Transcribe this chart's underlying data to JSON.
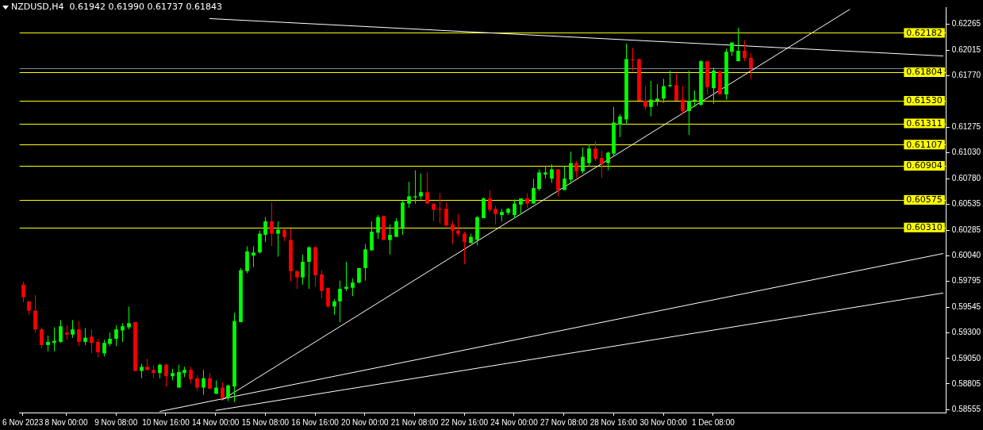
{
  "chart_data": {
    "type": "candlestick",
    "title": "NZDUSD,H4  0.61942 0.61990 0.61737 0.61843",
    "categories": [
      "6 Nov 2023",
      null,
      null,
      null,
      null,
      null,
      null,
      "8 Nov 00:00",
      null,
      null,
      null,
      null,
      null,
      null,
      null,
      "9 Nov 08:00",
      null,
      null,
      null,
      null,
      null,
      null,
      null,
      "10 Nov 16:00",
      null,
      null,
      null,
      null,
      null,
      null,
      null,
      "14 Nov 00:00",
      null,
      null,
      null,
      null,
      null,
      null,
      null,
      "15 Nov 08:00",
      null,
      null,
      null,
      null,
      null,
      null,
      null,
      "16 Nov 16:00",
      null,
      null,
      null,
      null,
      null,
      null,
      null,
      "20 Nov 00:00",
      null,
      null,
      null,
      null,
      null,
      null,
      null,
      "21 Nov 08:00",
      null,
      null,
      null,
      null,
      null,
      null,
      null,
      "22 Nov 16:00",
      null,
      null,
      null,
      null,
      null,
      null,
      null,
      "24 Nov 00:00",
      null,
      null,
      null,
      null,
      null,
      null,
      null,
      "27 Nov 08:00",
      null,
      null,
      null,
      null,
      null,
      null,
      null,
      "28 Nov 16:00",
      null,
      null,
      null,
      null,
      null,
      null,
      null,
      "30 Nov 00:00",
      null,
      null,
      null,
      null,
      null,
      null,
      null,
      "1 Dec 08:00",
      null,
      null,
      null,
      null,
      null,
      null,
      null,
      null,
      null,
      null,
      null,
      null,
      null,
      null,
      null,
      null,
      null,
      null,
      null,
      null,
      null,
      null,
      null,
      null,
      null,
      null,
      null,
      null,
      null,
      null,
      null,
      null,
      null,
      null,
      null,
      null,
      null
    ],
    "ohlc": [
      [
        0.5976,
        0.5979,
        0.5959,
        0.5964
      ],
      [
        0.596,
        0.596,
        0.5947,
        0.5951
      ],
      [
        0.5951,
        0.5966,
        0.593,
        0.5933
      ],
      [
        0.5933,
        0.5935,
        0.5915,
        0.5918
      ],
      [
        0.5918,
        0.5927,
        0.5912,
        0.5921
      ],
      [
        0.592,
        0.5935,
        0.5912,
        0.5922
      ],
      [
        0.5921,
        0.5942,
        0.592,
        0.5936
      ],
      [
        0.593,
        0.5937,
        0.5923,
        0.5928
      ],
      [
        0.5928,
        0.5942,
        0.5925,
        0.5933
      ],
      [
        0.5933,
        0.5941,
        0.5917,
        0.5921
      ],
      [
        0.5921,
        0.5934,
        0.5918,
        0.5925
      ],
      [
        0.5926,
        0.5933,
        0.591,
        0.592
      ],
      [
        0.5921,
        0.5924,
        0.5906,
        0.5911
      ],
      [
        0.591,
        0.5923,
        0.5907,
        0.592
      ],
      [
        0.5919,
        0.593,
        0.5917,
        0.5924
      ],
      [
        0.5924,
        0.5937,
        0.5917,
        0.5933
      ],
      [
        0.5932,
        0.5939,
        0.5921,
        0.5936
      ],
      [
        0.5935,
        0.5955,
        0.5933,
        0.5939
      ],
      [
        0.594,
        0.594,
        0.5893,
        0.5893
      ],
      [
        0.5893,
        0.59,
        0.5886,
        0.5897
      ],
      [
        0.5897,
        0.5905,
        0.5893,
        0.5894
      ],
      [
        0.5894,
        0.5899,
        0.5886,
        0.5891
      ],
      [
        0.5891,
        0.59,
        0.5886,
        0.5899
      ],
      [
        0.5899,
        0.59,
        0.5878,
        0.5888
      ],
      [
        0.5888,
        0.5895,
        0.5884,
        0.5891
      ],
      [
        0.5877,
        0.5899,
        0.5877,
        0.5892
      ],
      [
        0.5891,
        0.5897,
        0.5887,
        0.5894
      ],
      [
        0.5894,
        0.5897,
        0.5881,
        0.5885
      ],
      [
        0.5886,
        0.5889,
        0.5874,
        0.5877
      ],
      [
        0.5877,
        0.5894,
        0.587,
        0.5886
      ],
      [
        0.5886,
        0.5891,
        0.5876,
        0.5876
      ],
      [
        0.5871,
        0.5884,
        0.5871,
        0.5877
      ],
      [
        0.5877,
        0.5882,
        0.5866,
        0.5867
      ],
      [
        0.5867,
        0.588,
        0.5864,
        0.5879
      ],
      [
        0.5878,
        0.5949,
        0.5863,
        0.5941
      ],
      [
        0.594,
        0.5992,
        0.594,
        0.599
      ],
      [
        0.5989,
        0.6013,
        0.5987,
        0.6008
      ],
      [
        0.6004,
        0.6013,
        0.5993,
        0.6007
      ],
      [
        0.6007,
        0.6028,
        0.6006,
        0.6025
      ],
      [
        0.6024,
        0.6041,
        0.6017,
        0.6037
      ],
      [
        0.6037,
        0.6055,
        0.6013,
        0.6025
      ],
      [
        0.6025,
        0.6037,
        0.6003,
        0.6029
      ],
      [
        0.6029,
        0.6029,
        0.6018,
        0.6022
      ],
      [
        0.6019,
        0.603,
        0.5979,
        0.5989
      ],
      [
        0.5989,
        0.599,
        0.5972,
        0.5983
      ],
      [
        0.5983,
        0.6005,
        0.5976,
        0.5998
      ],
      [
        0.5998,
        0.6013,
        0.5972,
        0.6012
      ],
      [
        0.6012,
        0.6013,
        0.5974,
        0.5985
      ],
      [
        0.5986,
        0.599,
        0.5963,
        0.597
      ],
      [
        0.5973,
        0.5973,
        0.5954,
        0.5955
      ],
      [
        0.5955,
        0.5962,
        0.5947,
        0.596
      ],
      [
        0.596,
        0.598,
        0.594,
        0.5972
      ],
      [
        0.5972,
        0.5998,
        0.597,
        0.5974
      ],
      [
        0.5973,
        0.5982,
        0.5965,
        0.5978
      ],
      [
        0.5978,
        0.5992,
        0.5977,
        0.5992
      ],
      [
        0.5992,
        0.6015,
        0.598,
        0.601
      ],
      [
        0.6009,
        0.6037,
        0.6009,
        0.6027
      ],
      [
        0.6026,
        0.6043,
        0.602,
        0.6041
      ],
      [
        0.6042,
        0.6042,
        0.6019,
        0.6019
      ],
      [
        0.6019,
        0.6034,
        0.6005,
        0.6024
      ],
      [
        0.6022,
        0.604,
        0.6022,
        0.6037
      ],
      [
        0.6031,
        0.6057,
        0.6024,
        0.6055
      ],
      [
        0.6054,
        0.6075,
        0.605,
        0.6061
      ],
      [
        0.606,
        0.6086,
        0.6054,
        0.6061
      ],
      [
        0.6061,
        0.6083,
        0.6058,
        0.6065
      ],
      [
        0.6065,
        0.6084,
        0.6054,
        0.6054
      ],
      [
        0.6054,
        0.6054,
        0.6037,
        0.6048
      ],
      [
        0.6049,
        0.6064,
        0.6035,
        0.6048
      ],
      [
        0.6049,
        0.6055,
        0.6032,
        0.6033
      ],
      [
        0.6034,
        0.6037,
        0.6015,
        0.6028
      ],
      [
        0.6028,
        0.6044,
        0.6022,
        0.6025
      ],
      [
        0.6025,
        0.6027,
        0.5996,
        0.6017
      ],
      [
        0.6016,
        0.6025,
        0.6016,
        0.6022
      ],
      [
        0.6019,
        0.6042,
        0.6014,
        0.6041
      ],
      [
        0.604,
        0.606,
        0.604,
        0.6059
      ],
      [
        0.6059,
        0.6067,
        0.6046,
        0.6048
      ],
      [
        0.6049,
        0.6052,
        0.6034,
        0.6044
      ],
      [
        0.6043,
        0.6049,
        0.6037,
        0.6046
      ],
      [
        0.6045,
        0.605,
        0.6043,
        0.6049
      ],
      [
        0.6043,
        0.6058,
        0.604,
        0.6054
      ],
      [
        0.6053,
        0.6059,
        0.6044,
        0.6059
      ],
      [
        0.6059,
        0.6064,
        0.605,
        0.6054
      ],
      [
        0.6054,
        0.6078,
        0.6054,
        0.6069
      ],
      [
        0.6068,
        0.6087,
        0.6066,
        0.6084
      ],
      [
        0.6082,
        0.609,
        0.6078,
        0.6084
      ],
      [
        0.6078,
        0.6092,
        0.6074,
        0.6087
      ],
      [
        0.6087,
        0.6087,
        0.6061,
        0.6067
      ],
      [
        0.6067,
        0.609,
        0.6067,
        0.6078
      ],
      [
        0.6077,
        0.6104,
        0.6073,
        0.6093
      ],
      [
        0.6093,
        0.6095,
        0.6079,
        0.6085
      ],
      [
        0.6085,
        0.6108,
        0.6083,
        0.6099
      ],
      [
        0.6093,
        0.6111,
        0.609,
        0.6107
      ],
      [
        0.6107,
        0.6114,
        0.6095,
        0.6097
      ],
      [
        0.6098,
        0.6105,
        0.6079,
        0.6092
      ],
      [
        0.6093,
        0.6104,
        0.6086,
        0.6103
      ],
      [
        0.6102,
        0.6147,
        0.61,
        0.6132
      ],
      [
        0.613,
        0.614,
        0.6118,
        0.6138
      ],
      [
        0.6135,
        0.6208,
        0.613,
        0.6193
      ],
      [
        0.6193,
        0.6204,
        0.6182,
        0.6192
      ],
      [
        0.6193,
        0.6193,
        0.6153,
        0.6153
      ],
      [
        0.6153,
        0.6167,
        0.6144,
        0.6147
      ],
      [
        0.6147,
        0.6172,
        0.6138,
        0.6154
      ],
      [
        0.6153,
        0.6169,
        0.6148,
        0.6155
      ],
      [
        0.6155,
        0.6174,
        0.6151,
        0.6167
      ],
      [
        0.6167,
        0.6182,
        0.6166,
        0.6168
      ],
      [
        0.6168,
        0.6179,
        0.6153,
        0.6153
      ],
      [
        0.6154,
        0.6167,
        0.614,
        0.6143
      ],
      [
        0.6143,
        0.6182,
        0.612,
        0.6153
      ],
      [
        0.6153,
        0.6163,
        0.6147,
        0.6154
      ],
      [
        0.6149,
        0.6192,
        0.6148,
        0.6191
      ],
      [
        0.6191,
        0.6191,
        0.6159,
        0.6166
      ],
      [
        0.6165,
        0.6185,
        0.615,
        0.6182
      ],
      [
        0.6181,
        0.6182,
        0.6159,
        0.6159
      ],
      [
        0.6159,
        0.6203,
        0.6154,
        0.62
      ],
      [
        0.62,
        0.6209,
        0.6196,
        0.6209
      ],
      [
        0.6191,
        0.6223,
        0.6191,
        0.6201
      ],
      [
        0.6201,
        0.6211,
        0.6191,
        0.6194
      ],
      [
        0.61942,
        0.6199,
        0.61737,
        0.61843
      ],
      null,
      null,
      null,
      null,
      null,
      null,
      null,
      null,
      null,
      null,
      null,
      null,
      null,
      null,
      null,
      null,
      null,
      null,
      null,
      null,
      null,
      null,
      null,
      null,
      null,
      null,
      null,
      null,
      null,
      null,
      null
    ],
    "colors": [
      "#ff0000",
      "#ff0000",
      "#ff0000",
      "#ff0000",
      "#00ff00",
      "#00ff00",
      "#00ff00",
      "#ff0000",
      "#00ff00",
      "#ff0000",
      "#00ff00",
      "#ff0000",
      "#ff0000",
      "#00ff00",
      "#00ff00",
      "#00ff00",
      "#00ff00",
      "#00ff00",
      "#ff0000",
      "#00ff00",
      "#ff0000",
      "#ff0000",
      "#00ff00",
      "#ff0000",
      "#00ff00",
      "#00ff00",
      "#00ff00",
      "#ff0000",
      "#ff0000",
      "#00ff00",
      "#ff0000",
      "#00ff00",
      "#ff0000",
      "#00ff00",
      "#00ff00",
      "#00ff00",
      "#00ff00",
      "#00ff00",
      "#00ff00",
      "#00ff00",
      "#ff0000",
      "#00ff00",
      "#ff0000",
      "#ff0000",
      "#ff0000",
      "#00ff00",
      "#00ff00",
      "#ff0000",
      "#ff0000",
      "#ff0000",
      "#00ff00",
      "#00ff00",
      "#00ff00",
      "#00ff00",
      "#00ff00",
      "#00ff00",
      "#00ff00",
      "#00ff00",
      "#ff0000",
      "#00ff00",
      "#00ff00",
      "#00ff00",
      "#00ff00",
      "#00ff00",
      "#00ff00",
      "#ff0000",
      "#ff0000",
      "#ff0000",
      "#ff0000",
      "#ff0000",
      "#ff0000",
      "#ff0000",
      "#00ff00",
      "#00ff00",
      "#00ff00",
      "#ff0000",
      "#ff0000",
      "#00ff00",
      "#00ff00",
      "#00ff00",
      "#00ff00",
      "#ff0000",
      "#00ff00",
      "#00ff00",
      "#00ff00",
      "#00ff00",
      "#ff0000",
      "#00ff00",
      "#00ff00",
      "#ff0000",
      "#00ff00",
      "#00ff00",
      "#ff0000",
      "#ff0000",
      "#00ff00",
      "#00ff00",
      "#00ff00",
      "#00ff00",
      "#ff0000",
      "#ff0000",
      "#ff0000",
      "#00ff00",
      "#00ff00",
      "#00ff00",
      "#00ff00",
      "#ff0000",
      "#ff0000",
      "#00ff00",
      "#00ff00",
      "#00ff00",
      "#ff0000",
      "#00ff00",
      "#ff0000",
      "#00ff00",
      "#00ff00",
      "#00ff00",
      "#ff0000",
      "#ff0000",
      null,
      null,
      null,
      null,
      null,
      null,
      null,
      null,
      null,
      null,
      null,
      null,
      null,
      null,
      null,
      null,
      null,
      null,
      null,
      null,
      null,
      null,
      null,
      null,
      null,
      null,
      null,
      null,
      null,
      null,
      null
    ],
    "series": [
      {
        "type": "line",
        "color": "#ffffff",
        "values": [
          null,
          null,
          null,
          null,
          null,
          null,
          null,
          null,
          null,
          null,
          null,
          null,
          null,
          null,
          null,
          null,
          null,
          null,
          null,
          null,
          null,
          null,
          null,
          null,
          null,
          null,
          null,
          null,
          null,
          null,
          0.6232,
          null,
          null,
          null,
          null,
          null,
          null,
          null,
          null,
          null,
          null,
          null,
          null,
          null,
          null,
          null,
          null,
          null,
          null,
          null,
          null,
          null,
          null,
          null,
          null,
          null,
          null,
          null,
          null,
          null,
          null,
          null,
          null,
          null,
          null,
          null,
          null,
          null,
          null,
          null,
          null,
          null,
          null,
          null,
          null,
          null,
          null,
          null,
          null,
          null,
          null,
          null,
          null,
          null,
          null,
          null,
          null,
          null,
          null,
          null,
          null,
          null,
          null,
          null,
          null,
          null,
          null,
          null,
          null,
          null,
          null,
          null,
          null,
          null,
          null,
          null,
          null,
          null,
          null,
          null,
          null,
          null,
          null,
          null,
          null,
          null,
          null,
          null,
          null,
          null,
          null,
          null,
          null,
          null,
          null,
          null,
          null,
          null,
          null,
          null,
          null,
          null,
          null,
          null,
          null,
          null,
          null,
          null,
          null,
          null,
          null,
          null,
          null,
          null,
          null,
          null,
          null,
          null,
          0.6196
        ]
      },
      {
        "type": "line",
        "color": "#ffffff",
        "values": [
          null,
          null,
          null,
          null,
          null,
          null,
          null,
          null,
          null,
          null,
          null,
          null,
          null,
          null,
          null,
          null,
          null,
          null,
          null,
          null,
          null,
          null,
          0.5854,
          null,
          null,
          null,
          null,
          null,
          null,
          null,
          null,
          null,
          null,
          null,
          null,
          null,
          null,
          null,
          null,
          null,
          null,
          null,
          null,
          null,
          null,
          null,
          null,
          null,
          null,
          null,
          null,
          null,
          null,
          null,
          null,
          null,
          null,
          null,
          null,
          null,
          null,
          null,
          null,
          null,
          null,
          null,
          null,
          null,
          null,
          null,
          null,
          null,
          null,
          null,
          null,
          null,
          null,
          null,
          null,
          null,
          null,
          null,
          null,
          null,
          null,
          null,
          null,
          null,
          null,
          null,
          null,
          null,
          null,
          null,
          null,
          null,
          null,
          null,
          null,
          null,
          null,
          null,
          null,
          null,
          null,
          null,
          null,
          null,
          null,
          null,
          null,
          null,
          null,
          null,
          null,
          null,
          null,
          null,
          null,
          null,
          null,
          null,
          null,
          null,
          null,
          null,
          null,
          null,
          null,
          null,
          null,
          null,
          null,
          null,
          null,
          null,
          null,
          null,
          null,
          null,
          null,
          null,
          null,
          null,
          null,
          null,
          null,
          null,
          0.6006
        ]
      },
      {
        "type": "line",
        "color": "#ffffff",
        "values": [
          null,
          null,
          null,
          null,
          null,
          null,
          null,
          null,
          null,
          null,
          null,
          null,
          null,
          null,
          null,
          null,
          null,
          null,
          null,
          null,
          null,
          null,
          null,
          null,
          null,
          null,
          null,
          null,
          null,
          null,
          null,
          0.5855,
          null,
          null,
          null,
          null,
          null,
          null,
          null,
          null,
          null,
          null,
          null,
          null,
          null,
          null,
          null,
          null,
          null,
          null,
          null,
          null,
          null,
          null,
          null,
          null,
          null,
          null,
          null,
          null,
          null,
          null,
          null,
          null,
          null,
          null,
          null,
          null,
          null,
          null,
          null,
          null,
          null,
          null,
          null,
          null,
          null,
          null,
          null,
          null,
          null,
          null,
          null,
          null,
          null,
          null,
          null,
          null,
          null,
          null,
          null,
          null,
          null,
          null,
          null,
          null,
          null,
          null,
          null,
          null,
          null,
          null,
          null,
          null,
          null,
          null,
          null,
          null,
          null,
          null,
          null,
          null,
          null,
          null,
          null,
          null,
          null,
          null,
          null,
          null,
          null,
          null,
          null,
          null,
          null,
          null,
          null,
          null,
          null,
          null,
          null,
          null,
          null,
          null,
          null,
          null,
          null,
          null,
          null,
          null,
          null,
          null,
          null,
          null,
          null,
          null,
          null,
          null,
          0.5968
        ]
      },
      {
        "type": "line",
        "color": "#ffffff",
        "values": [
          null,
          null,
          null,
          null,
          null,
          null,
          null,
          null,
          null,
          null,
          null,
          null,
          null,
          null,
          null,
          null,
          null,
          null,
          null,
          null,
          null,
          null,
          null,
          null,
          null,
          null,
          null,
          null,
          null,
          null,
          null,
          null,
          0.5865,
          null,
          null,
          null,
          null,
          null,
          null,
          null,
          null,
          null,
          null,
          null,
          null,
          null,
          null,
          null,
          null,
          null,
          null,
          null,
          null,
          null,
          null,
          null,
          null,
          null,
          null,
          null,
          null,
          null,
          null,
          null,
          null,
          null,
          null,
          null,
          null,
          null,
          null,
          null,
          null,
          null,
          null,
          null,
          null,
          null,
          null,
          null,
          null,
          null,
          null,
          null,
          null,
          null,
          null,
          null,
          null,
          null,
          null,
          null,
          null,
          null,
          null,
          null,
          null,
          null,
          null,
          null,
          null,
          null,
          null,
          null,
          null,
          null,
          null,
          null,
          null,
          null,
          null,
          null,
          null,
          null,
          null,
          null,
          null,
          null,
          null,
          null,
          null,
          null,
          null,
          null,
          null,
          null,
          null,
          null,
          null,
          null,
          null,
          null,
          null,
          0.6241,
          null,
          null,
          null,
          null,
          null,
          null,
          null,
          null,
          null,
          null,
          null,
          null,
          null,
          null,
          null
        ]
      }
    ],
    "ref_lines": [
      {
        "axis": "y",
        "value": 0.62182,
        "label": "0.62182",
        "color": "#ffff00"
      },
      {
        "axis": "y",
        "value": 0.61843,
        "label": null,
        "color": "#778899"
      },
      {
        "axis": "y",
        "value": 0.61804,
        "label": "0.61804",
        "color": "#ffff00"
      },
      {
        "axis": "y",
        "value": 0.6153,
        "label": "0.61530",
        "color": "#ffff00"
      },
      {
        "axis": "y",
        "value": 0.61311,
        "label": "0.61311",
        "color": "#ffff00"
      },
      {
        "axis": "y",
        "value": 0.61107,
        "label": "0.61107",
        "color": "#ffff00"
      },
      {
        "axis": "y",
        "value": 0.60904,
        "label": "0.60904",
        "color": "#ffff00"
      },
      {
        "axis": "y",
        "value": 0.60575,
        "label": "0.60575",
        "color": "#ffff00"
      },
      {
        "axis": "y",
        "value": 0.6031,
        "label": "0.60310",
        "color": "#ffff00"
      }
    ],
    "ylim": [
      0.5853,
      0.6243
    ],
    "yticks": [
      0.62265,
      0.62015,
      {
        "value": 0.6177,
        "label": "0.61770"
      },
      0.61275,
      {
        "value": 0.6103,
        "label": "0.61030"
      },
      {
        "value": 0.6078,
        "label": "0.60780"
      },
      0.60535,
      0.60285,
      {
        "value": 0.6004,
        "label": "0.60040"
      },
      0.59795,
      0.59545,
      {
        "value": 0.593,
        "label": "0.59300"
      },
      {
        "value": 0.5905,
        "label": "0.59050"
      },
      0.58805,
      0.58555
    ]
  }
}
